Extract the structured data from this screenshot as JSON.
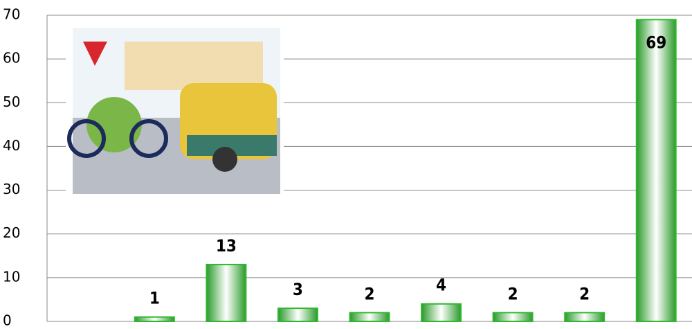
{
  "chart_data": {
    "type": "bar",
    "categories": [
      null,
      null,
      null,
      null,
      null,
      null,
      null,
      null,
      null
    ],
    "values": [
      null,
      1,
      13,
      3,
      2,
      4,
      2,
      2,
      69
    ],
    "color": "#2fb82f",
    "ylim": [
      0,
      70
    ],
    "yticks": [
      0,
      10,
      20,
      30,
      40,
      50,
      60,
      70
    ],
    "grid": true
  }
}
